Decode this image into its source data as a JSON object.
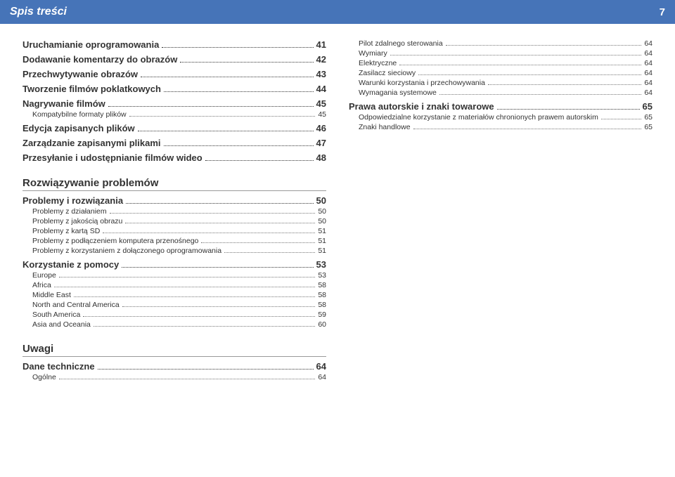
{
  "header": {
    "title": "Spis treści",
    "page": "7"
  },
  "left": {
    "top": [
      {
        "lvl": 0,
        "label": "Uruchamianie oprogramowania",
        "page": "41"
      },
      {
        "lvl": 0,
        "label": "Dodawanie komentarzy do obrazów",
        "page": "42"
      },
      {
        "lvl": 0,
        "label": "Przechwytywanie obrazów",
        "page": "43"
      },
      {
        "lvl": 0,
        "label": "Tworzenie filmów poklatkowych",
        "page": "44"
      },
      {
        "lvl": 0,
        "label": "Nagrywanie filmów",
        "page": "45"
      },
      {
        "lvl": 1,
        "label": "Kompatybilne formaty plików",
        "page": "45"
      },
      {
        "lvl": 0,
        "label": "Edycja zapisanych plików",
        "page": "46"
      },
      {
        "lvl": 0,
        "label": "Zarządzanie zapisanymi plikami",
        "page": "47"
      },
      {
        "lvl": 0,
        "label": "Przesyłanie i udostępnianie filmów wideo",
        "page": "48"
      }
    ],
    "section_problems": "Rozwiązywanie problemów",
    "problems": [
      {
        "lvl": 0,
        "label": "Problemy i rozwiązania",
        "page": "50"
      },
      {
        "lvl": 1,
        "label": "Problemy z działaniem",
        "page": "50"
      },
      {
        "lvl": 1,
        "label": "Problemy z jakością obrazu",
        "page": "50"
      },
      {
        "lvl": 1,
        "label": "Problemy z kartą SD",
        "page": "51"
      },
      {
        "lvl": 1,
        "label": "Problemy z podłączeniem komputera przenośnego",
        "page": "51"
      },
      {
        "lvl": 1,
        "label": "Problemy z korzystaniem z dołączonego oprogramowania",
        "page": "51"
      },
      {
        "lvl": 0,
        "label": "Korzystanie z pomocy",
        "page": "53"
      },
      {
        "lvl": 1,
        "label": "Europe",
        "page": "53"
      },
      {
        "lvl": 1,
        "label": "Africa",
        "page": "58"
      },
      {
        "lvl": 1,
        "label": "Middle East",
        "page": "58"
      },
      {
        "lvl": 1,
        "label": "North and Central America",
        "page": "58"
      },
      {
        "lvl": 1,
        "label": "South America",
        "page": "59"
      },
      {
        "lvl": 1,
        "label": "Asia and Oceania",
        "page": "60"
      }
    ],
    "section_notes": "Uwagi",
    "notes": [
      {
        "lvl": 0,
        "label": "Dane techniczne",
        "page": "64"
      },
      {
        "lvl": 1,
        "label": "Ogólne",
        "page": "64"
      }
    ]
  },
  "right": {
    "top": [
      {
        "lvl": 1,
        "label": "Pilot zdalnego sterowania",
        "page": "64"
      },
      {
        "lvl": 1,
        "label": "Wymiary",
        "page": "64"
      },
      {
        "lvl": 1,
        "label": "Elektryczne",
        "page": "64"
      },
      {
        "lvl": 1,
        "label": "Zasilacz sieciowy",
        "page": "64"
      },
      {
        "lvl": 1,
        "label": "Warunki korzystania i przechowywania",
        "page": "64"
      },
      {
        "lvl": 1,
        "label": "Wymagania systemowe",
        "page": "64"
      },
      {
        "lvl": 0,
        "label": "Prawa autorskie i znaki towarowe",
        "page": "65"
      },
      {
        "lvl": 1,
        "label": "Odpowiedzialne korzystanie z materiałów chronionych prawem autorskim",
        "page": "65"
      },
      {
        "lvl": 1,
        "label": "Znaki handlowe",
        "page": "65"
      }
    ]
  }
}
